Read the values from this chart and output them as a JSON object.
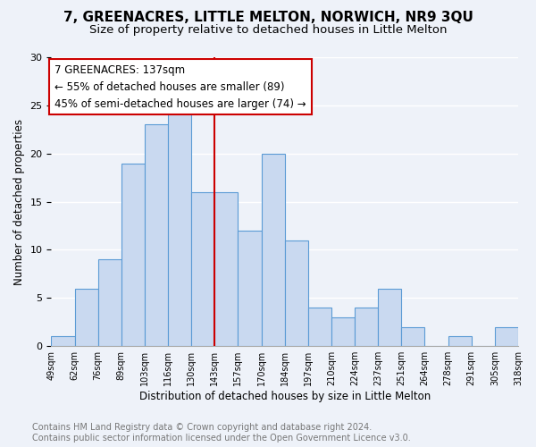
{
  "title": "7, GREENACRES, LITTLE MELTON, NORWICH, NR9 3QU",
  "subtitle": "Size of property relative to detached houses in Little Melton",
  "xlabel": "Distribution of detached houses by size in Little Melton",
  "ylabel": "Number of detached properties",
  "bar_values": [
    1,
    6,
    9,
    19,
    23,
    25,
    16,
    16,
    12,
    20,
    11,
    4,
    3,
    4,
    6,
    2,
    0,
    1,
    0,
    2
  ],
  "categories": [
    "49sqm",
    "62sqm",
    "76sqm",
    "89sqm",
    "103sqm",
    "116sqm",
    "130sqm",
    "143sqm",
    "157sqm",
    "170sqm",
    "184sqm",
    "197sqm",
    "210sqm",
    "224sqm",
    "237sqm",
    "251sqm",
    "264sqm",
    "278sqm",
    "291sqm",
    "305sqm",
    "318sqm"
  ],
  "bar_color": "#c9d9f0",
  "bar_edge_color": "#5b9bd5",
  "annotation_box_color": "#cc0000",
  "vline_color": "#cc0000",
  "vline_x": 7.0,
  "annotation_line1": "7 GREENACRES: 137sqm",
  "annotation_line2": "← 55% of detached houses are smaller (89)",
  "annotation_line3": "45% of semi-detached houses are larger (74) →",
  "ylim": [
    0,
    30
  ],
  "yticks": [
    0,
    5,
    10,
    15,
    20,
    25,
    30
  ],
  "footer_text": "Contains HM Land Registry data © Crown copyright and database right 2024.\nContains public sector information licensed under the Open Government Licence v3.0.",
  "background_color": "#eef2f9",
  "grid_color": "#ffffff",
  "title_fontsize": 11,
  "subtitle_fontsize": 9.5,
  "annotation_fontsize": 8.5,
  "footer_fontsize": 7
}
